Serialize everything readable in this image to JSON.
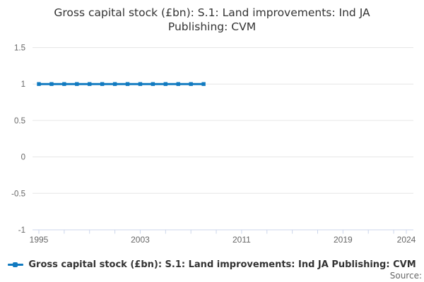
{
  "footer": {
    "source_label": "Source:"
  },
  "colors": {
    "series_blue": "#117ac0",
    "grid_line": "#e6e6e6",
    "axis_line": "#ccd6eb",
    "axis_label": "#666666",
    "title_text": "#333333"
  },
  "chart_data": {
    "type": "line",
    "title": "Gross capital stock (£bn): S.1: Land improvements: Ind JA Publishing: CVM",
    "xlabel": "",
    "ylabel": "",
    "x": [
      1995,
      1996,
      1997,
      1998,
      1999,
      2000,
      2001,
      2002,
      2003,
      2004,
      2005,
      2006,
      2007,
      2008
    ],
    "series": [
      {
        "name": "Gross capital stock (£bn): S.1: Land improvements: Ind JA Publishing: CVM",
        "values": [
          1,
          1,
          1,
          1,
          1,
          1,
          1,
          1,
          1,
          1,
          1,
          1,
          1,
          1
        ],
        "color": "#117ac0",
        "marker": "square"
      }
    ],
    "x_axis": {
      "min": 1995,
      "max": 2024,
      "tick_years": [
        1995,
        1997,
        1999,
        2001,
        2003,
        2005,
        2007,
        2009,
        2011,
        2013,
        2015,
        2017,
        2019,
        2021,
        2023,
        2024
      ],
      "labeled_years": [
        1995,
        2003,
        2011,
        2019,
        2024
      ]
    },
    "y_axis": {
      "min": -1,
      "max": 1.5,
      "ticks": [
        1.5,
        1,
        0.5,
        0,
        -0.5,
        -1
      ]
    },
    "ylim": [
      -1,
      1.5
    ],
    "grid": true,
    "legend_position": "bottom"
  }
}
